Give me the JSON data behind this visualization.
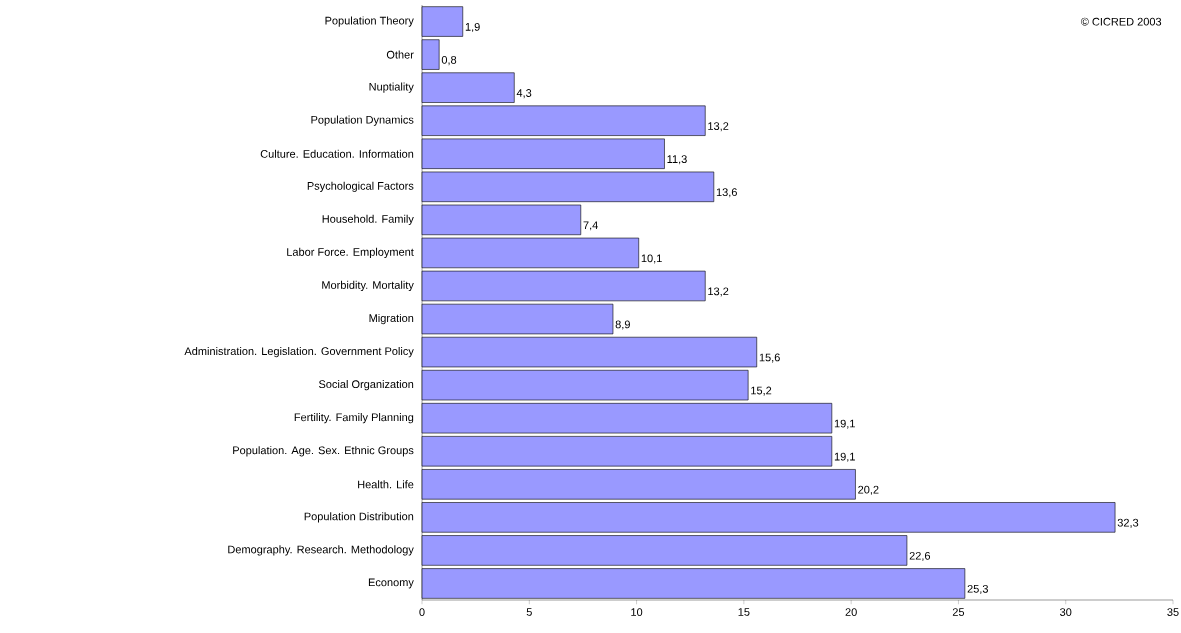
{
  "chart_data": {
    "type": "bar",
    "orientation": "horizontal",
    "categories": [
      "Population Theory",
      "Other",
      "Nuptiality",
      "Population Dynamics",
      "Culture. Education.  Information",
      "Psychological Factors",
      "Household. Family",
      "Labor Force. Employment",
      "Morbidity. Mortality",
      "Migration",
      "Administration. Legislation.  Government Policy",
      "Social Organization",
      "Fertility.  Family Planning",
      "Population. Age. Sex.  Ethnic Groups",
      "Health. Life",
      "Population Distribution",
      "Demography. Research.  Methodology",
      "Economy"
    ],
    "values": [
      1.9,
      0.8,
      4.3,
      13.2,
      11.3,
      13.6,
      7.4,
      10.1,
      13.2,
      8.9,
      15.6,
      15.2,
      19.1,
      19.1,
      20.2,
      32.3,
      22.6,
      25.3
    ],
    "value_labels": [
      "1,9",
      "0,8",
      "4,3",
      "13,2",
      "11,3",
      "13,6",
      "7,4",
      "10,1",
      "13,2",
      "8,9",
      "15,6",
      "15,2",
      "19,1",
      "19,1",
      "20,2",
      "32,3",
      "22,6",
      "25,3"
    ],
    "color": "#9999ff",
    "xlim": [
      0,
      35
    ],
    "xticks": [
      0,
      5,
      10,
      15,
      20,
      25,
      30,
      35
    ],
    "annotations": [
      "© CICRED 2003"
    ]
  }
}
